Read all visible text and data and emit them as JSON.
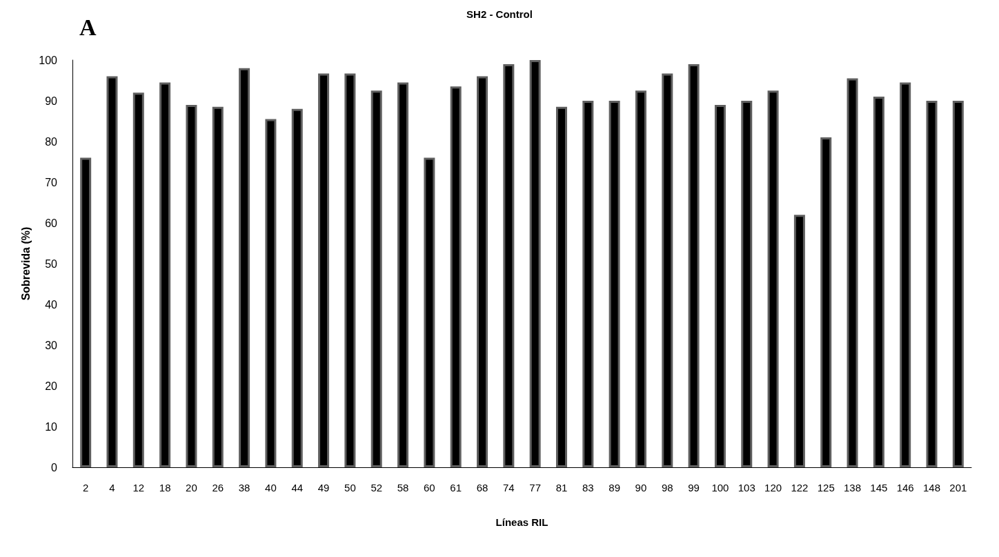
{
  "chart_data": {
    "type": "bar",
    "title": "SH2 - Control",
    "xlabel": "Líneas RIL",
    "ylabel": "Sobrevida (%)",
    "annotations": [
      "A"
    ],
    "categories": [
      "2",
      "4",
      "12",
      "18",
      "20",
      "26",
      "38",
      "40",
      "44",
      "49",
      "50",
      "52",
      "58",
      "60",
      "61",
      "68",
      "74",
      "77",
      "81",
      "83",
      "89",
      "90",
      "98",
      "99",
      "100",
      "103",
      "120",
      "122",
      "125",
      "138",
      "145",
      "146",
      "148",
      "201"
    ],
    "values": [
      76,
      96,
      92,
      94.5,
      89,
      88.5,
      98,
      85.5,
      88,
      96.7,
      96.7,
      92.5,
      94.5,
      76,
      93.5,
      96,
      99,
      100,
      88.5,
      90,
      90,
      92.5,
      96.7,
      99,
      89,
      90,
      92.5,
      62,
      81,
      95.5,
      91,
      94.5,
      90,
      90
    ],
    "color": "#000000",
    "ylim": [
      0,
      100
    ],
    "yticks": [
      0,
      10,
      20,
      30,
      40,
      50,
      60,
      70,
      80,
      90,
      100
    ],
    "grid": false
  }
}
